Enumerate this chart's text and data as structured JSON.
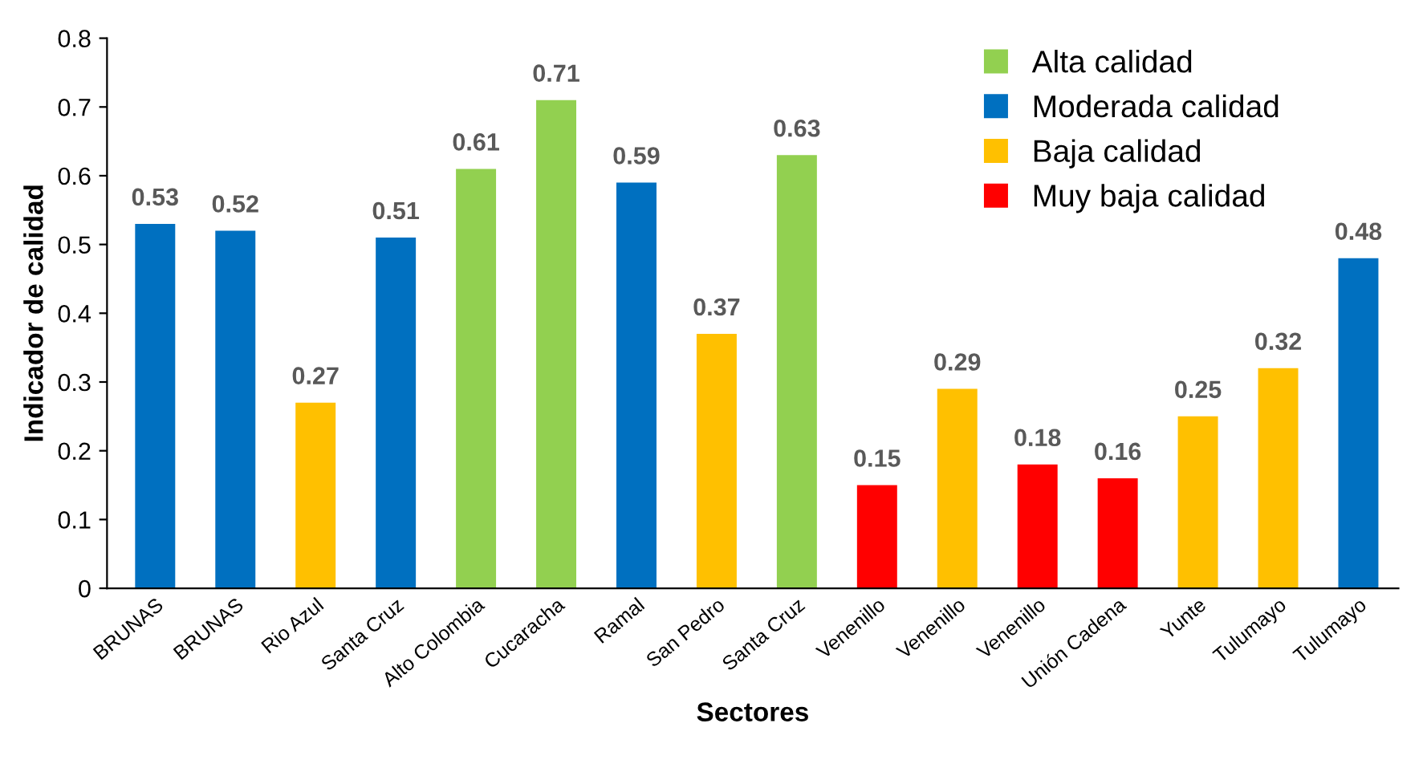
{
  "chart_data": {
    "type": "bar",
    "xlabel": "Sectores",
    "ylabel": "Indicador de calidad",
    "categories": [
      "BRUNAS",
      "BRUNAS",
      "Rio Azul",
      "Santa Cruz",
      "Alto Colombia",
      "Cucaracha",
      "Ramal",
      "San Pedro",
      "Santa Cruz",
      "Venenillo",
      "Venenillo",
      "Venenillo",
      "Unión Cadena",
      "Yunte",
      "Tulumayo",
      "Tulumayo"
    ],
    "series": [
      {
        "name": "Alta calidad",
        "color": "#92d050",
        "values": [
          null,
          null,
          null,
          null,
          0.61,
          0.71,
          null,
          null,
          0.63,
          null,
          null,
          null,
          null,
          null,
          null,
          null
        ]
      },
      {
        "name": "Moderada calidad",
        "color": "#0070c0",
        "values": [
          0.53,
          0.52,
          null,
          0.51,
          null,
          null,
          0.59,
          null,
          null,
          null,
          null,
          null,
          null,
          null,
          null,
          0.48
        ]
      },
      {
        "name": "Baja calidad",
        "color": "#ffc000",
        "values": [
          null,
          null,
          0.27,
          null,
          null,
          null,
          null,
          0.37,
          null,
          null,
          0.29,
          null,
          null,
          0.25,
          0.32,
          null
        ]
      },
      {
        "name": "Muy baja calidad",
        "color": "#ff0000",
        "values": [
          null,
          null,
          null,
          null,
          null,
          null,
          null,
          null,
          null,
          0.15,
          null,
          0.18,
          0.16,
          null,
          null,
          null
        ]
      }
    ],
    "ylim": [
      0,
      0.8
    ],
    "yticks": [
      0,
      0.1,
      0.2,
      0.3,
      0.4,
      0.5,
      0.6,
      0.7,
      0.8
    ],
    "data_labels": true,
    "legend": "top right",
    "grid": false
  }
}
